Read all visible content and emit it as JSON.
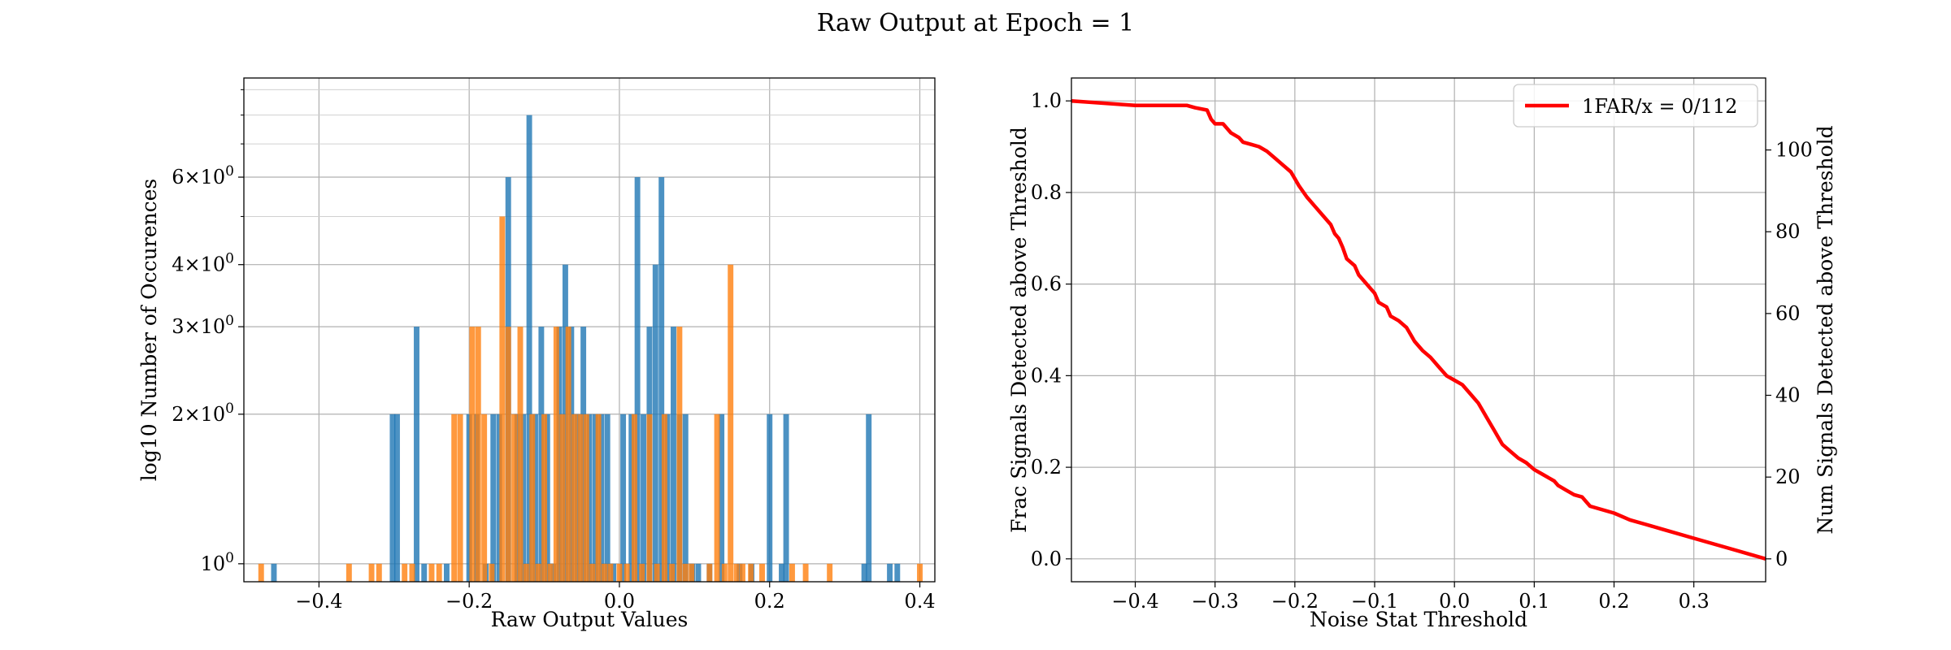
{
  "figure": {
    "title": "Raw Output at Epoch = 1"
  },
  "chart_data": [
    {
      "type": "bar",
      "subtype": "histogram",
      "xlabel": "Raw Output Values",
      "ylabel": "log10 Number of Occurences",
      "xlim": [
        -0.5,
        0.42
      ],
      "ylim": [
        0.92,
        9.5
      ],
      "yscale": "log",
      "grid": true,
      "x_ticks": [
        -0.4,
        -0.2,
        0.0,
        0.2,
        0.4
      ],
      "x_tick_labels": [
        "−0.4",
        "−0.2",
        "0.0",
        "0.2",
        "0.4"
      ],
      "y_ticks": [
        1,
        2,
        3,
        4,
        6
      ],
      "y_tick_labels": [
        {
          "base": "10",
          "exp": "0",
          "mult": ""
        },
        {
          "base": "10",
          "exp": "0",
          "mult": "2×"
        },
        {
          "base": "10",
          "exp": "0",
          "mult": "3×"
        },
        {
          "base": "10",
          "exp": "0",
          "mult": "4×"
        },
        {
          "base": "10",
          "exp": "0",
          "mult": "6×"
        }
      ],
      "y_minor_ticks": [
        5,
        7,
        8,
        9
      ],
      "bin_width": 0.0075,
      "series": [
        {
          "color": "#1f77b4",
          "opacity": 0.8,
          "bins": [
            [
              -0.46,
              1
            ],
            [
              -0.302,
              2
            ],
            [
              -0.296,
              2
            ],
            [
              -0.27,
              3
            ],
            [
              -0.26,
              1
            ],
            [
              -0.23,
              1
            ],
            [
              -0.2,
              2
            ],
            [
              -0.19,
              2
            ],
            [
              -0.178,
              1
            ],
            [
              -0.168,
              2
            ],
            [
              -0.16,
              2
            ],
            [
              -0.148,
              6
            ],
            [
              -0.136,
              2
            ],
            [
              -0.128,
              2
            ],
            [
              -0.12,
              8
            ],
            [
              -0.112,
              2
            ],
            [
              -0.104,
              3
            ],
            [
              -0.096,
              2
            ],
            [
              -0.088,
              1
            ],
            [
              -0.08,
              3
            ],
            [
              -0.072,
              4
            ],
            [
              -0.064,
              3
            ],
            [
              -0.056,
              2
            ],
            [
              -0.048,
              3
            ],
            [
              -0.04,
              2
            ],
            [
              -0.032,
              2
            ],
            [
              -0.024,
              2
            ],
            [
              -0.016,
              2
            ],
            [
              -0.008,
              1
            ],
            [
              0.005,
              2
            ],
            [
              0.016,
              2
            ],
            [
              0.024,
              6
            ],
            [
              0.032,
              2
            ],
            [
              0.04,
              3
            ],
            [
              0.048,
              4
            ],
            [
              0.056,
              6
            ],
            [
              0.064,
              2
            ],
            [
              0.072,
              3
            ],
            [
              0.08,
              2
            ],
            [
              0.088,
              2
            ],
            [
              0.097,
              1
            ],
            [
              0.105,
              1
            ],
            [
              0.12,
              1
            ],
            [
              0.136,
              2
            ],
            [
              0.16,
              1
            ],
            [
              0.176,
              1
            ],
            [
              0.2,
              2
            ],
            [
              0.216,
              1
            ],
            [
              0.222,
              2
            ],
            [
              0.326,
              1
            ],
            [
              0.332,
              2
            ],
            [
              0.36,
              1
            ],
            [
              0.37,
              1
            ]
          ]
        },
        {
          "color": "#ff7f0e",
          "opacity": 0.8,
          "bins": [
            [
              -0.477,
              1
            ],
            [
              -0.36,
              1
            ],
            [
              -0.33,
              1
            ],
            [
              -0.32,
              1
            ],
            [
              -0.286,
              1
            ],
            [
              -0.276,
              1
            ],
            [
              -0.25,
              1
            ],
            [
              -0.24,
              1
            ],
            [
              -0.22,
              2
            ],
            [
              -0.212,
              2
            ],
            [
              -0.196,
              3
            ],
            [
              -0.188,
              3
            ],
            [
              -0.18,
              2
            ],
            [
              -0.17,
              1
            ],
            [
              -0.156,
              5
            ],
            [
              -0.148,
              3
            ],
            [
              -0.14,
              2
            ],
            [
              -0.132,
              3
            ],
            [
              -0.124,
              1
            ],
            [
              -0.116,
              2
            ],
            [
              -0.108,
              1
            ],
            [
              -0.1,
              2
            ],
            [
              -0.092,
              1
            ],
            [
              -0.084,
              3
            ],
            [
              -0.076,
              2
            ],
            [
              -0.068,
              3
            ],
            [
              -0.06,
              2
            ],
            [
              -0.052,
              2
            ],
            [
              -0.044,
              2
            ],
            [
              -0.036,
              1
            ],
            [
              -0.028,
              2
            ],
            [
              -0.02,
              1
            ],
            [
              -0.012,
              1
            ],
            [
              0.0,
              1
            ],
            [
              0.01,
              1
            ],
            [
              0.02,
              2
            ],
            [
              0.03,
              1
            ],
            [
              0.04,
              2
            ],
            [
              0.05,
              1
            ],
            [
              0.06,
              2
            ],
            [
              0.07,
              1
            ],
            [
              0.08,
              3
            ],
            [
              0.088,
              1
            ],
            [
              0.096,
              1
            ],
            [
              0.12,
              1
            ],
            [
              0.13,
              2
            ],
            [
              0.14,
              1
            ],
            [
              0.148,
              4
            ],
            [
              0.156,
              1
            ],
            [
              0.164,
              1
            ],
            [
              0.175,
              1
            ],
            [
              0.19,
              1
            ],
            [
              0.23,
              1
            ],
            [
              0.248,
              1
            ],
            [
              0.28,
              1
            ],
            [
              0.4,
              1
            ]
          ]
        }
      ]
    },
    {
      "type": "line",
      "xlabel": "Noise Stat Threshold",
      "ylabel": "Frac Signals Detected above Threshold",
      "y2label": "Num Signals Detected above Threshold",
      "xlim": [
        -0.48,
        0.39
      ],
      "ylim": [
        -0.05,
        1.05
      ],
      "y2lim": [
        -5.6,
        117.6
      ],
      "grid": true,
      "legend_position": "upper right",
      "x_ticks": [
        -0.4,
        -0.3,
        -0.2,
        -0.1,
        0.0,
        0.1,
        0.2,
        0.3
      ],
      "x_tick_labels": [
        "−0.4",
        "−0.3",
        "−0.2",
        "−0.1",
        "0.0",
        "0.1",
        "0.2",
        "0.3"
      ],
      "y_ticks": [
        0.0,
        0.2,
        0.4,
        0.6,
        0.8,
        1.0
      ],
      "y_tick_labels": [
        "0.0",
        "0.2",
        "0.4",
        "0.6",
        "0.8",
        "1.0"
      ],
      "y2_ticks": [
        0,
        20,
        40,
        60,
        80,
        100
      ],
      "y2_tick_labels": [
        "0",
        "20",
        "40",
        "60",
        "80",
        "100"
      ],
      "series": [
        {
          "name": "1FAR/x = 0/112",
          "color": "#ff0000",
          "x": [
            -0.48,
            -0.4,
            -0.35,
            -0.335,
            -0.325,
            -0.31,
            -0.305,
            -0.3,
            -0.29,
            -0.28,
            -0.27,
            -0.265,
            -0.255,
            -0.245,
            -0.235,
            -0.225,
            -0.215,
            -0.205,
            -0.2,
            -0.195,
            -0.185,
            -0.175,
            -0.165,
            -0.155,
            -0.15,
            -0.145,
            -0.14,
            -0.135,
            -0.125,
            -0.12,
            -0.11,
            -0.105,
            -0.1,
            -0.095,
            -0.085,
            -0.08,
            -0.07,
            -0.06,
            -0.055,
            -0.05,
            -0.04,
            -0.03,
            -0.02,
            -0.015,
            -0.01,
            0.0,
            0.01,
            0.02,
            0.03,
            0.04,
            0.05,
            0.055,
            0.06,
            0.07,
            0.08,
            0.09,
            0.1,
            0.11,
            0.12,
            0.125,
            0.13,
            0.14,
            0.15,
            0.16,
            0.165,
            0.17,
            0.2,
            0.22,
            0.24,
            0.26,
            0.3,
            0.35,
            0.39
          ],
          "y": [
            1.0,
            0.99,
            0.99,
            0.99,
            0.985,
            0.98,
            0.96,
            0.95,
            0.95,
            0.93,
            0.92,
            0.91,
            0.905,
            0.9,
            0.89,
            0.875,
            0.86,
            0.845,
            0.83,
            0.815,
            0.79,
            0.77,
            0.75,
            0.73,
            0.71,
            0.7,
            0.68,
            0.655,
            0.64,
            0.62,
            0.6,
            0.59,
            0.58,
            0.56,
            0.55,
            0.53,
            0.52,
            0.505,
            0.49,
            0.475,
            0.455,
            0.44,
            0.42,
            0.41,
            0.4,
            0.39,
            0.38,
            0.36,
            0.34,
            0.31,
            0.28,
            0.265,
            0.25,
            0.235,
            0.22,
            0.21,
            0.195,
            0.185,
            0.175,
            0.17,
            0.16,
            0.15,
            0.14,
            0.135,
            0.125,
            0.115,
            0.1,
            0.085,
            0.075,
            0.065,
            0.045,
            0.02,
            0.0
          ]
        }
      ]
    }
  ]
}
